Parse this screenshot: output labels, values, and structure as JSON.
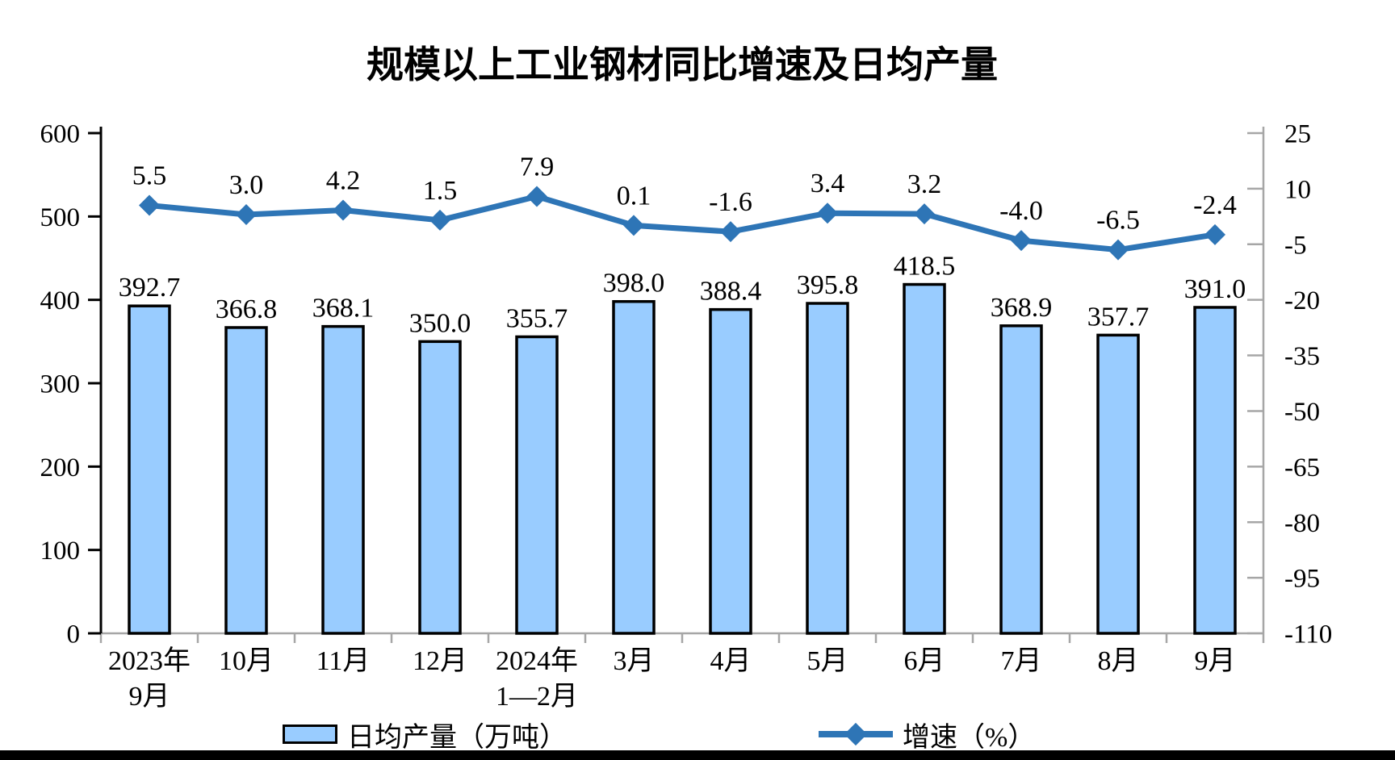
{
  "chart_data": {
    "type": "combo",
    "title": "规模以上工业钢材同比增速及日均产量",
    "categories": [
      "2023年\n9月",
      "10月",
      "11月",
      "12月",
      "2024年\n1—2月",
      "3月",
      "4月",
      "5月",
      "6月",
      "7月",
      "8月",
      "9月"
    ],
    "series": [
      {
        "name": "日均产量（万吨）",
        "type": "bar",
        "axis": "left",
        "decimals": 1,
        "fill": "#99CCFF",
        "stroke": "#000000",
        "values": [
          392.7,
          366.8,
          368.1,
          350.0,
          355.7,
          398.0,
          388.4,
          395.8,
          418.5,
          368.9,
          357.7,
          391.0
        ]
      },
      {
        "name": "增速（%）",
        "type": "line",
        "axis": "right",
        "decimals": 1,
        "color": "#2E75B6",
        "marker": "diamond",
        "values": [
          5.5,
          3.0,
          4.2,
          1.5,
          7.9,
          0.1,
          -1.6,
          3.4,
          3.2,
          -4.0,
          -6.5,
          -2.4
        ]
      }
    ],
    "left_axis": {
      "min": 0,
      "max": 600,
      "step": 100
    },
    "right_axis": {
      "min": -110,
      "max": 25,
      "step": 15
    },
    "grid": false,
    "data_labels": true,
    "legend_position": "bottom"
  },
  "colors": {
    "background": "#FFFFFF",
    "axis_left": "#000000",
    "axis_secondary": "#A6A6A6",
    "text": "#000000",
    "footer_bar": "#000000"
  }
}
